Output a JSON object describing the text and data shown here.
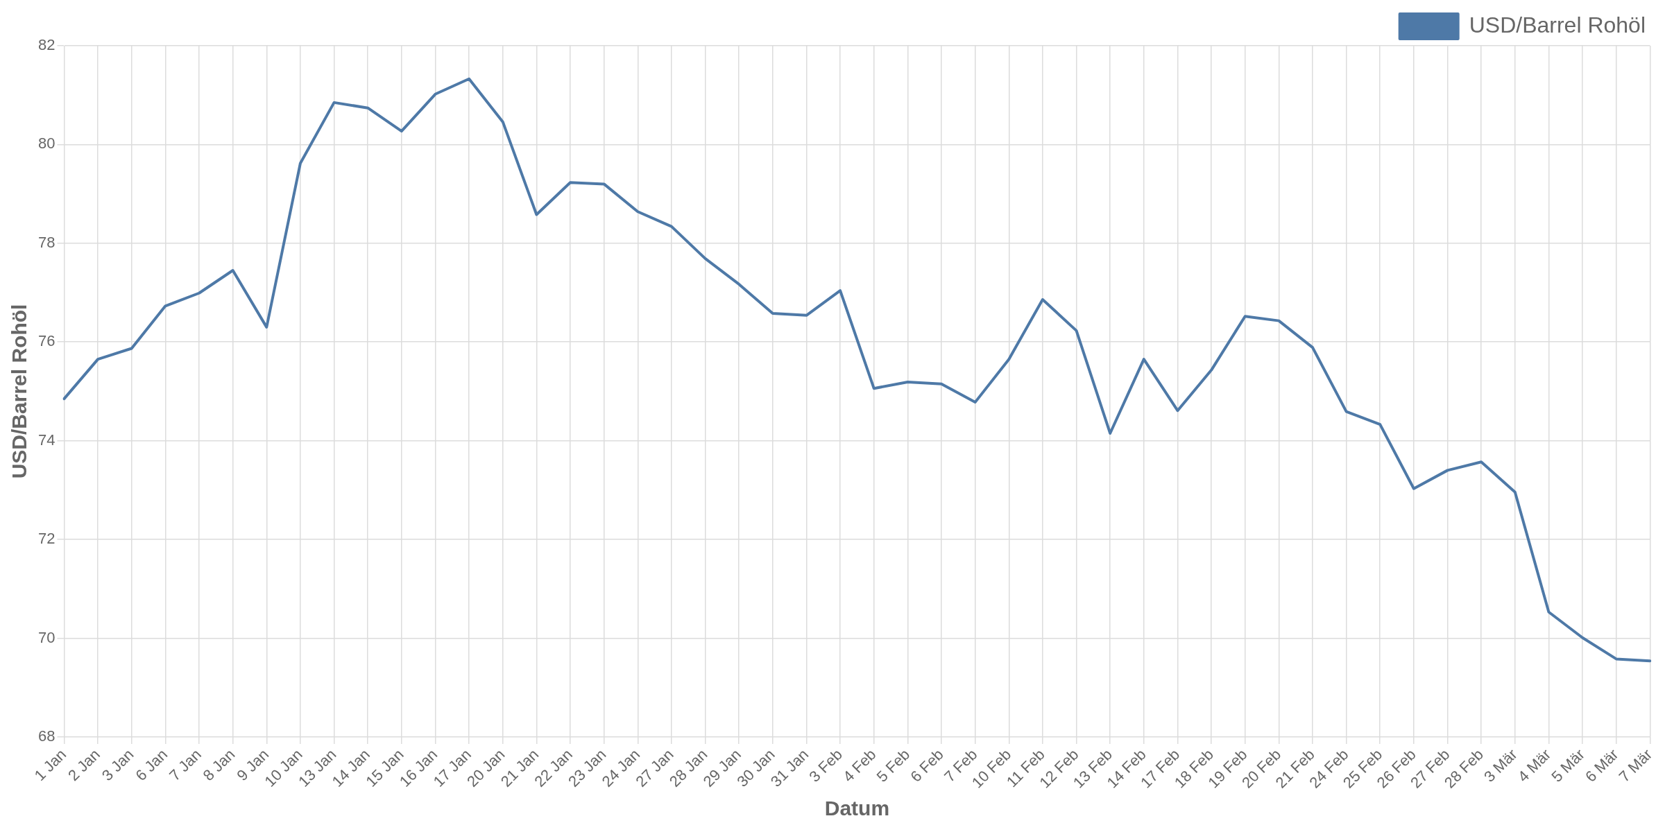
{
  "chart_data": {
    "type": "line",
    "xlabel": "Datum",
    "ylabel": "USD/Barrel Rohöl",
    "categories": [
      "1 Jan",
      "2 Jan",
      "3 Jan",
      "6 Jan",
      "7 Jan",
      "8 Jan",
      "9 Jan",
      "10 Jan",
      "13 Jan",
      "14 Jan",
      "15 Jan",
      "16 Jan",
      "17 Jan",
      "20 Jan",
      "21 Jan",
      "22 Jan",
      "23 Jan",
      "24 Jan",
      "27 Jan",
      "28 Jan",
      "29 Jan",
      "30 Jan",
      "31 Jan",
      "3 Feb",
      "4 Feb",
      "5 Feb",
      "6 Feb",
      "7 Feb",
      "10 Feb",
      "11 Feb",
      "12 Feb",
      "13 Feb",
      "14 Feb",
      "17 Feb",
      "18 Feb",
      "19 Feb",
      "20 Feb",
      "21 Feb",
      "24 Feb",
      "25 Feb",
      "26 Feb",
      "27 Feb",
      "28 Feb",
      "3 Mär",
      "4 Mär",
      "5 Mär",
      "6 Mär",
      "7 Mär"
    ],
    "series": [
      {
        "name": "USD/Barrel Rohöl",
        "color": "#4e79a7",
        "values": [
          74.85,
          75.65,
          75.87,
          76.73,
          76.99,
          77.45,
          76.3,
          79.62,
          80.85,
          80.74,
          80.27,
          81.02,
          81.33,
          80.46,
          78.58,
          79.23,
          79.2,
          78.64,
          78.34,
          77.69,
          77.17,
          76.58,
          76.54,
          77.04,
          75.06,
          75.19,
          75.15,
          74.78,
          75.65,
          76.86,
          76.23,
          74.15,
          75.65,
          74.61,
          75.43,
          76.52,
          76.43,
          75.89,
          74.59,
          74.33,
          73.03,
          73.4,
          73.57,
          72.96,
          70.53,
          70.01,
          69.58,
          69.54
        ]
      }
    ],
    "ylim": [
      68,
      82
    ],
    "yticks": [
      68,
      70,
      72,
      74,
      76,
      78,
      80,
      82
    ],
    "grid": true,
    "legend": "top right",
    "marker": "none",
    "line_style": "solid"
  }
}
